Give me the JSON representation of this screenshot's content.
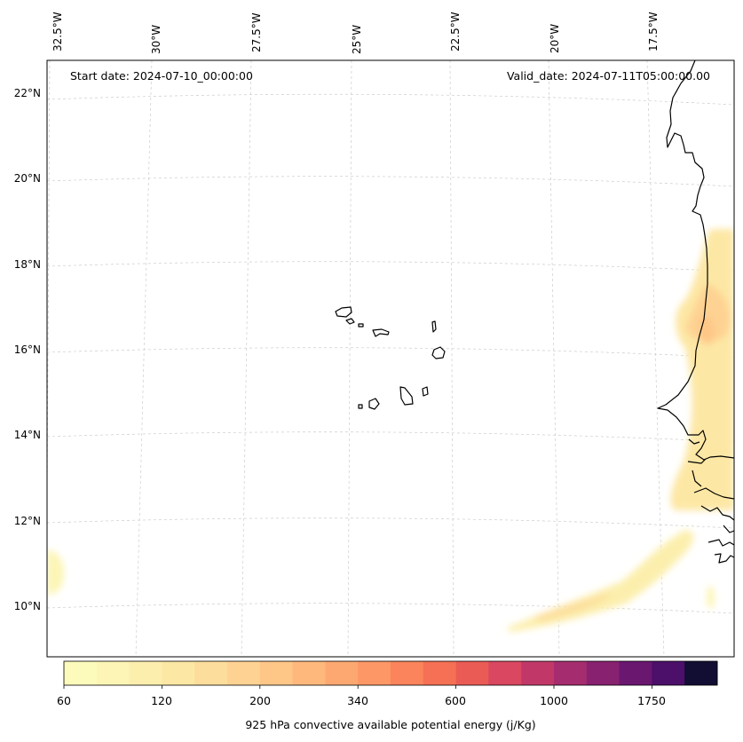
{
  "map": {
    "start_date": "Start date: 2024-07-10_00:00:00",
    "valid_date": "Valid_date: 2024-07-11T05:00:00.00",
    "longitude_labels": [
      "32.5°W",
      "30°W",
      "27.5°W",
      "25°W",
      "22.5°W",
      "20°W",
      "17.5°W"
    ],
    "latitude_labels": [
      "22°N",
      "20°N",
      "18°N",
      "16°N",
      "14°N",
      "12°N",
      "10°N"
    ],
    "coastline_color": "#000000",
    "gridline_color": "#cccccc"
  },
  "colorbar": {
    "label": "925 hPa convective available potential energy (j/Kg)",
    "tick_labels": [
      "60",
      "120",
      "200",
      "340",
      "600",
      "1000",
      "1750"
    ],
    "colors": [
      "#fdfbbc",
      "#fcf5b5",
      "#fcefad",
      "#fde7a4",
      "#fddd9b",
      "#fed292",
      "#fec687",
      "#feb87c",
      "#fea871",
      "#fd9766",
      "#fb845c",
      "#f57054",
      "#eb5b55",
      "#d94760",
      "#c13868",
      "#a52c6e",
      "#882170",
      "#6a1770",
      "#4c0f6a",
      "#120d33"
    ]
  }
}
